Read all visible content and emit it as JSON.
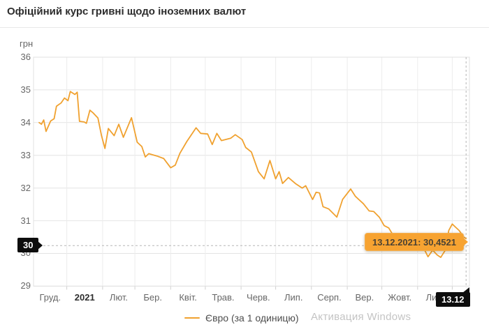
{
  "header": {
    "title": "Офіційний курс гривні щодо іноземних валют"
  },
  "chart_data": {
    "type": "line",
    "title": "Офіційний курс гривні щодо іноземних валют",
    "y_axis": {
      "unit_label": "грн",
      "min": 29,
      "max": 36,
      "ticks": [
        36,
        35,
        34,
        33,
        32,
        31,
        30,
        29
      ]
    },
    "x_axis": {
      "labels": [
        "Груд.",
        "2021",
        "Лют.",
        "Бер.",
        "Квіт.",
        "Трав.",
        "Черв.",
        "Лип.",
        "Серп.",
        "Вер.",
        "Жовт.",
        "Лис."
      ],
      "bold_label_index": 1,
      "month_boundary_days": [
        24,
        55,
        83,
        114,
        144,
        175,
        205,
        236,
        267,
        297,
        328,
        358
      ],
      "total_days": 370
    },
    "grid": true,
    "legend_position": "bottom",
    "series": [
      {
        "name": "Євро (за 1 одиницю)",
        "color": "#F0A12F",
        "points": [
          [
            0,
            34.0
          ],
          [
            2,
            33.95
          ],
          [
            4,
            34.08
          ],
          [
            6,
            33.73
          ],
          [
            10,
            34.05
          ],
          [
            13,
            34.12
          ],
          [
            15,
            34.5
          ],
          [
            19,
            34.6
          ],
          [
            22,
            34.75
          ],
          [
            25,
            34.67
          ],
          [
            27,
            34.95
          ],
          [
            31,
            34.86
          ],
          [
            33,
            34.93
          ],
          [
            35,
            34.04
          ],
          [
            39,
            34.02
          ],
          [
            41,
            33.98
          ],
          [
            44,
            34.38
          ],
          [
            47,
            34.29
          ],
          [
            51,
            34.14
          ],
          [
            54,
            33.61
          ],
          [
            57,
            33.21
          ],
          [
            60,
            33.82
          ],
          [
            65,
            33.6
          ],
          [
            69,
            33.95
          ],
          [
            73,
            33.55
          ],
          [
            80,
            34.15
          ],
          [
            85,
            33.4
          ],
          [
            89,
            33.27
          ],
          [
            92,
            32.95
          ],
          [
            95,
            33.05
          ],
          [
            102,
            32.98
          ],
          [
            108,
            32.9
          ],
          [
            114,
            32.62
          ],
          [
            118,
            32.7
          ],
          [
            122,
            33.06
          ],
          [
            128,
            33.42
          ],
          [
            136,
            33.84
          ],
          [
            140,
            33.67
          ],
          [
            146,
            33.65
          ],
          [
            150,
            33.33
          ],
          [
            154,
            33.67
          ],
          [
            158,
            33.45
          ],
          [
            166,
            33.52
          ],
          [
            170,
            33.63
          ],
          [
            176,
            33.48
          ],
          [
            179,
            33.24
          ],
          [
            184,
            33.1
          ],
          [
            190,
            32.5
          ],
          [
            195,
            32.28
          ],
          [
            200,
            32.84
          ],
          [
            205,
            32.28
          ],
          [
            208,
            32.5
          ],
          [
            211,
            32.14
          ],
          [
            216,
            32.32
          ],
          [
            222,
            32.14
          ],
          [
            228,
            32.0
          ],
          [
            231,
            32.07
          ],
          [
            237,
            31.65
          ],
          [
            240,
            31.87
          ],
          [
            243,
            31.85
          ],
          [
            246,
            31.43
          ],
          [
            251,
            31.36
          ],
          [
            258,
            31.11
          ],
          [
            263,
            31.65
          ],
          [
            270,
            31.97
          ],
          [
            274,
            31.75
          ],
          [
            277,
            31.65
          ],
          [
            281,
            31.52
          ],
          [
            286,
            31.3
          ],
          [
            290,
            31.28
          ],
          [
            295,
            31.1
          ],
          [
            299,
            30.85
          ],
          [
            303,
            30.78
          ],
          [
            306,
            30.6
          ],
          [
            314,
            30.45
          ],
          [
            323,
            30.3
          ],
          [
            332,
            30.25
          ],
          [
            337,
            29.9
          ],
          [
            341,
            30.1
          ],
          [
            345,
            29.95
          ],
          [
            348,
            29.88
          ],
          [
            352,
            30.1
          ],
          [
            355,
            30.7
          ],
          [
            358,
            30.9
          ],
          [
            361,
            30.8
          ],
          [
            364,
            30.7
          ],
          [
            368,
            30.5
          ],
          [
            370,
            30.4521
          ]
        ]
      }
    ],
    "crosshair": {
      "y_value": 30.24,
      "x_day": 370,
      "y_axis_label": "30",
      "x_axis_label": "13.12"
    },
    "tooltip": {
      "text": "13.12.2021: 30,4521",
      "date": "13.12.2021",
      "value": "30,4521",
      "bg_color": "#F7A331"
    }
  },
  "legend": {
    "items": [
      {
        "label": "Євро (за 1 одиницю)",
        "color": "#F0A12F"
      }
    ]
  },
  "watermark": {
    "text": "Активация Windows"
  }
}
